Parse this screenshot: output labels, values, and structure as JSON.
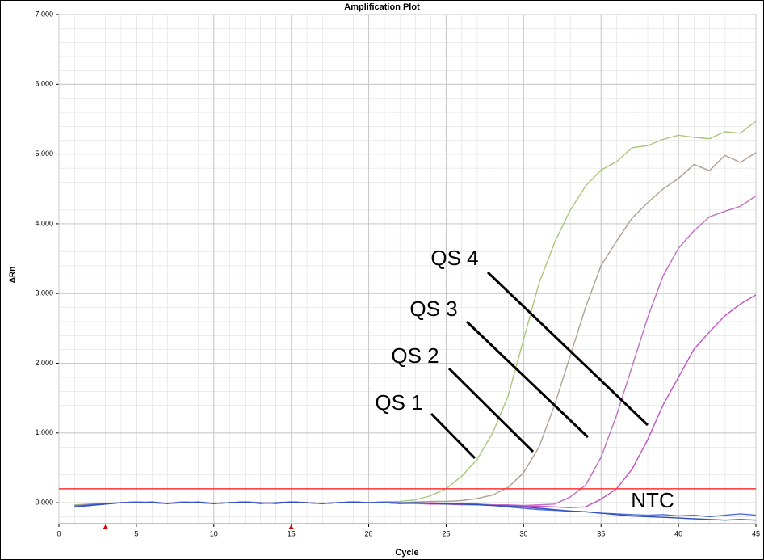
{
  "chart_data": {
    "type": "line",
    "title": "Amplification Plot",
    "x_label": "Cycle",
    "y_label": "ΔRn",
    "x": [
      1,
      2,
      3,
      4,
      5,
      6,
      7,
      8,
      9,
      10,
      11,
      12,
      13,
      14,
      15,
      16,
      17,
      18,
      19,
      20,
      21,
      22,
      23,
      24,
      25,
      26,
      27,
      28,
      29,
      30,
      31,
      32,
      33,
      34,
      35,
      36,
      37,
      38,
      39,
      40,
      41,
      42,
      43,
      44,
      45
    ],
    "series": [
      {
        "name": "QS 1",
        "color": "#a8c878",
        "values": [
          -30,
          -20,
          -10,
          0,
          10,
          0,
          -10,
          10,
          0,
          -10,
          0,
          10,
          0,
          -10,
          10,
          0,
          -10,
          0,
          10,
          0,
          10,
          20,
          40,
          100,
          200,
          380,
          620,
          1000,
          1530,
          2340,
          3150,
          3730,
          4190,
          4540,
          4770,
          4890,
          5090,
          5120,
          5210,
          5270,
          5240,
          5220,
          5320,
          5300,
          5470
        ]
      },
      {
        "name": "QS 2",
        "color": "#b0a090",
        "values": [
          -40,
          -20,
          -10,
          0,
          10,
          0,
          -10,
          10,
          0,
          -10,
          0,
          10,
          0,
          -10,
          10,
          0,
          -10,
          0,
          10,
          0,
          10,
          0,
          10,
          20,
          20,
          30,
          60,
          110,
          220,
          430,
          800,
          1400,
          2100,
          2800,
          3400,
          3750,
          4080,
          4300,
          4500,
          4650,
          4850,
          4760,
          4980,
          4880,
          5020
        ]
      },
      {
        "name": "QS 3",
        "color": "#c070c0",
        "values": [
          -50,
          -30,
          -10,
          0,
          10,
          0,
          -10,
          10,
          0,
          -10,
          0,
          10,
          0,
          -10,
          10,
          0,
          -10,
          0,
          10,
          0,
          10,
          0,
          -10,
          0,
          -10,
          -20,
          -20,
          -30,
          -30,
          -40,
          -30,
          -20,
          80,
          250,
          650,
          1250,
          1950,
          2650,
          3250,
          3650,
          3900,
          4100,
          4180,
          4250,
          4400
        ]
      },
      {
        "name": "QS 4",
        "color": "#c050c8",
        "values": [
          -60,
          -40,
          -20,
          0,
          10,
          0,
          -10,
          10,
          0,
          -10,
          0,
          10,
          0,
          -10,
          10,
          0,
          -10,
          0,
          10,
          0,
          0,
          -10,
          -10,
          -20,
          -20,
          -30,
          -30,
          -40,
          -40,
          -50,
          -50,
          -60,
          -70,
          -60,
          50,
          200,
          480,
          900,
          1400,
          1800,
          2200,
          2450,
          2680,
          2850,
          2980
        ]
      },
      {
        "name": "NTC",
        "color": "#5070d8",
        "values": [
          -50,
          -30,
          -10,
          0,
          10,
          0,
          -10,
          10,
          0,
          -10,
          0,
          10,
          0,
          -10,
          10,
          0,
          -10,
          0,
          10,
          0,
          10,
          0,
          0,
          -10,
          -10,
          -10,
          -20,
          -40,
          -60,
          -80,
          -100,
          -110,
          -120,
          -130,
          -150,
          -160,
          -170,
          -180,
          -170,
          -190,
          -180,
          -200,
          -180,
          -160,
          -180
        ]
      },
      {
        "color": "#3050c0",
        "values": [
          -60,
          -40,
          -20,
          0,
          0,
          10,
          -10,
          0,
          10,
          -10,
          0,
          10,
          -10,
          0,
          10,
          0,
          -10,
          0,
          10,
          0,
          0,
          -10,
          0,
          -10,
          -20,
          -20,
          -30,
          -40,
          -50,
          -60,
          -80,
          -100,
          -120,
          -130,
          -150,
          -170,
          -190,
          -200,
          -210,
          -220,
          -230,
          -240,
          -250,
          -240,
          -250
        ]
      }
    ],
    "threshold": 200,
    "threshold_color": "#ff3030",
    "baseline": [
      3,
      15
    ],
    "xlim": [
      0,
      45
    ],
    "ylim": [
      -300,
      7000
    ],
    "xticks": [
      0,
      5,
      10,
      15,
      20,
      25,
      30,
      35,
      40,
      45
    ],
    "yticks": [
      {
        "value": 0,
        "label": "0.000"
      },
      {
        "value": 1000,
        "label": "1.000"
      },
      {
        "value": 2000,
        "label": "2.000"
      },
      {
        "value": 3000,
        "label": "3.000"
      },
      {
        "value": 4000,
        "label": "4.000"
      },
      {
        "value": 5000,
        "label": "5.000"
      },
      {
        "value": 6000,
        "label": "6.000"
      },
      {
        "value": 7000,
        "label": "7.000"
      }
    ],
    "grid": true
  }
}
